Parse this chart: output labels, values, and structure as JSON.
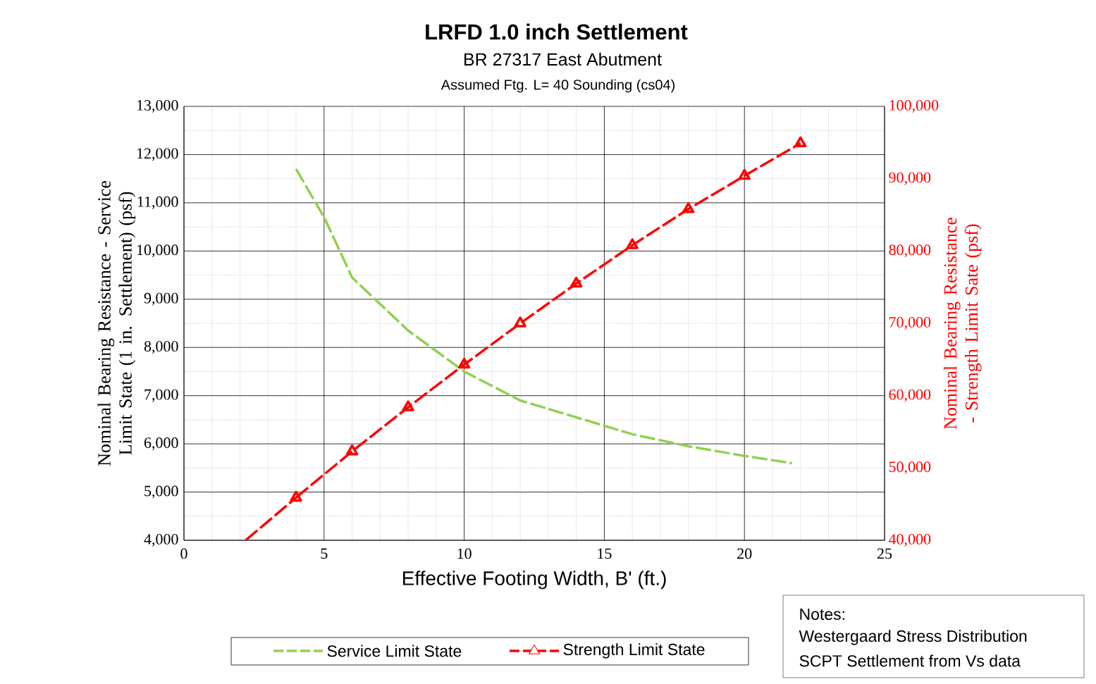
{
  "chart_data": {
    "type": "line",
    "title": "LRFD 1.0 inch Settlement",
    "subtitle": "BR 27317 East Abutment",
    "xlabel": "Effective Footing Width, B' (ft.)",
    "ylabel": "Nominal Bearing Resistance - Service Limit State (1 in. Settlement)  (psf)",
    "y2label": "Nominal Bearing Resistance - Strength Limit Sate (psf)",
    "annotations": [
      "Assumed Ftg. L= 40 Sounding (cs04)",
      "Notes:",
      "Westergaard Stress Distribution",
      "SCPT Settlement from Vs data"
    ],
    "xlim": [
      0,
      25
    ],
    "xticks": [
      0,
      5,
      10,
      15,
      20,
      25
    ],
    "ylim": [
      4000,
      13000
    ],
    "yticks": [
      {
        "value": 4000,
        "label": "4,000"
      },
      {
        "value": 5000,
        "label": "5,000"
      },
      {
        "value": 6000,
        "label": "6,000"
      },
      {
        "value": 7000,
        "label": "7,000"
      },
      {
        "value": 8000,
        "label": "8,000"
      },
      {
        "value": 9000,
        "label": "9,000"
      },
      {
        "value": 10000,
        "label": "10,000"
      },
      {
        "value": 11000,
        "label": "11,000"
      },
      {
        "value": 12000,
        "label": "12,000"
      },
      {
        "value": 13000,
        "label": "13,000"
      }
    ],
    "y2lim": [
      40000,
      100000
    ],
    "y2ticks": [
      {
        "value": 40000,
        "label": "40,000"
      },
      {
        "value": 50000,
        "label": "50,000"
      },
      {
        "value": 60000,
        "label": "60,000"
      },
      {
        "value": 70000,
        "label": "70,000"
      },
      {
        "value": 80000,
        "label": "80,000"
      },
      {
        "value": 90000,
        "label": "90,000"
      },
      {
        "value": 100000,
        "label": "100,000"
      }
    ],
    "grid": true,
    "legend": "bottom",
    "line_style": "dashed",
    "series": [
      {
        "name": "Service Limit State",
        "color": "#92d050",
        "marker": "none",
        "axis": "y",
        "x": [
          4,
          5,
          6,
          8,
          10,
          12,
          14,
          16,
          18,
          20,
          21.7
        ],
        "values": [
          11700,
          10700,
          9450,
          8350,
          7500,
          6900,
          6550,
          6200,
          5950,
          5750,
          5600
        ]
      },
      {
        "name": "Strength Limit State",
        "color": "#ff0000",
        "marker": "triangle",
        "axis": "y2",
        "x": [
          4,
          6,
          8,
          10,
          12,
          14,
          16,
          18,
          20,
          22
        ],
        "values": [
          45900,
          52300,
          58400,
          64300,
          70000,
          75500,
          80800,
          85800,
          90400,
          94900
        ]
      },
      {
        "color": "#ff0000",
        "marker": "none",
        "axis": "y2",
        "x": [
          2.2,
          4
        ],
        "values": [
          40000,
          45900
        ]
      }
    ]
  }
}
